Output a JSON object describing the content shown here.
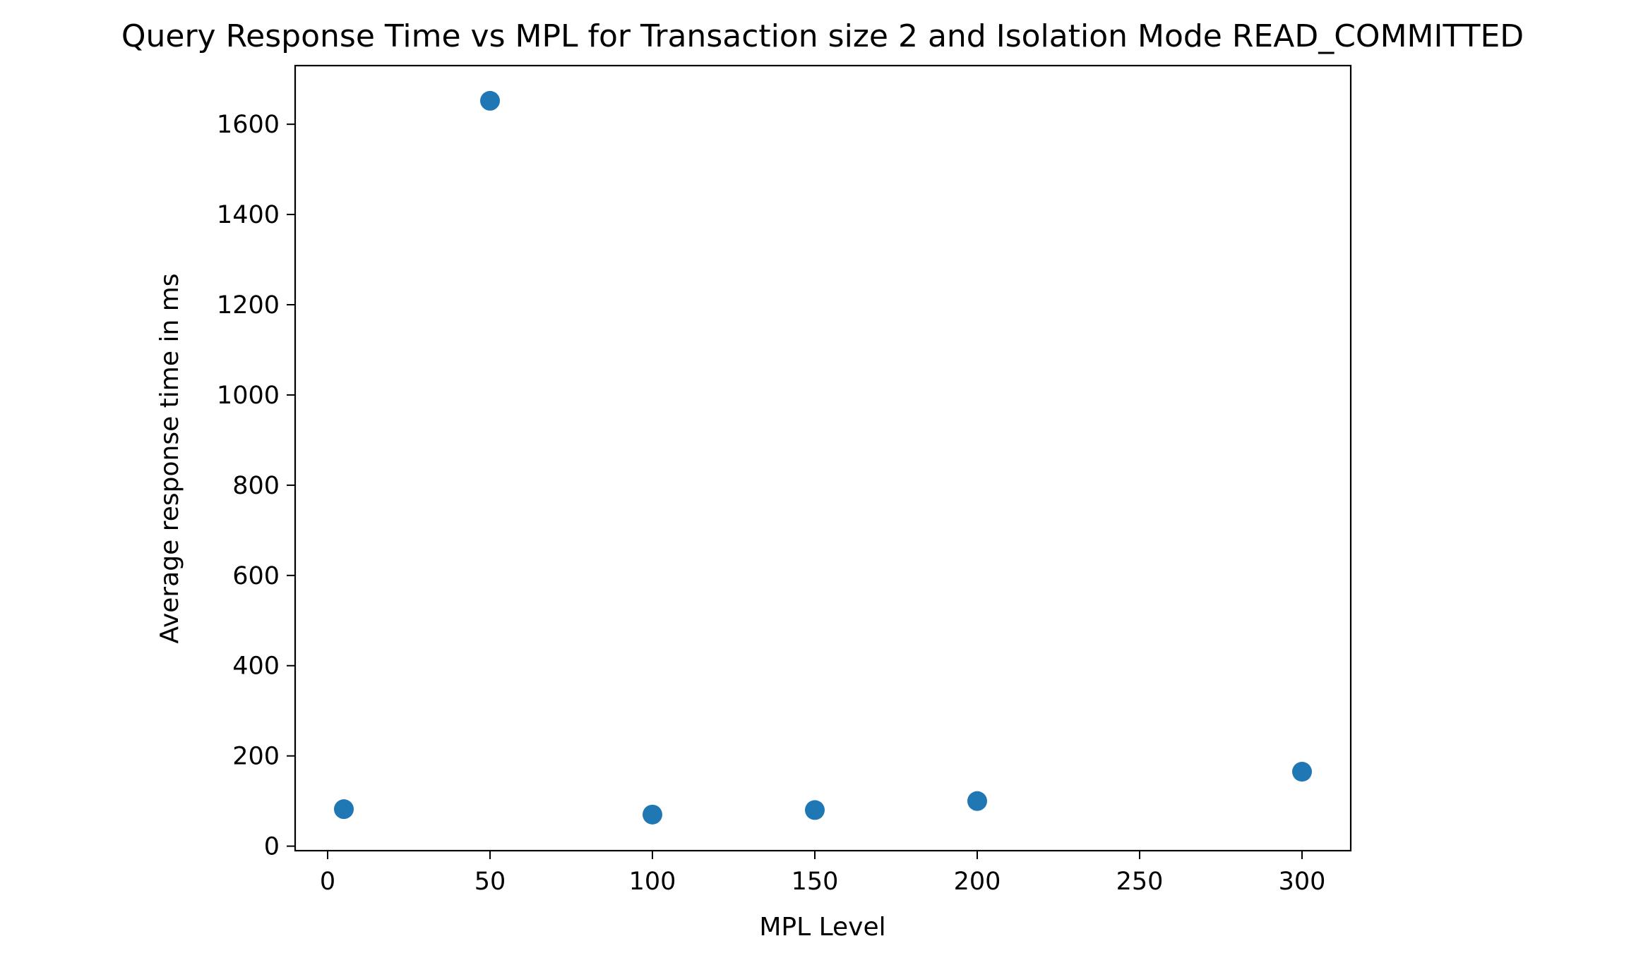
{
  "chart_data": {
    "type": "scatter",
    "title": "Query Response Time vs MPL for Transaction size 2 and Isolation Mode READ_COMMITTED",
    "xlabel": "MPL Level",
    "ylabel": "Average response time in ms",
    "xlim": [
      -10,
      315
    ],
    "ylim": [
      -10,
      1730
    ],
    "xticks": [
      0,
      50,
      100,
      150,
      200,
      250,
      300
    ],
    "yticks": [
      0,
      200,
      400,
      600,
      800,
      1000,
      1200,
      1400,
      1600
    ],
    "grid": false,
    "marker_color": "#1f77b4",
    "points": [
      {
        "x": 5,
        "y": 82
      },
      {
        "x": 50,
        "y": 1652
      },
      {
        "x": 100,
        "y": 70
      },
      {
        "x": 150,
        "y": 80
      },
      {
        "x": 200,
        "y": 100
      },
      {
        "x": 300,
        "y": 165
      }
    ]
  }
}
